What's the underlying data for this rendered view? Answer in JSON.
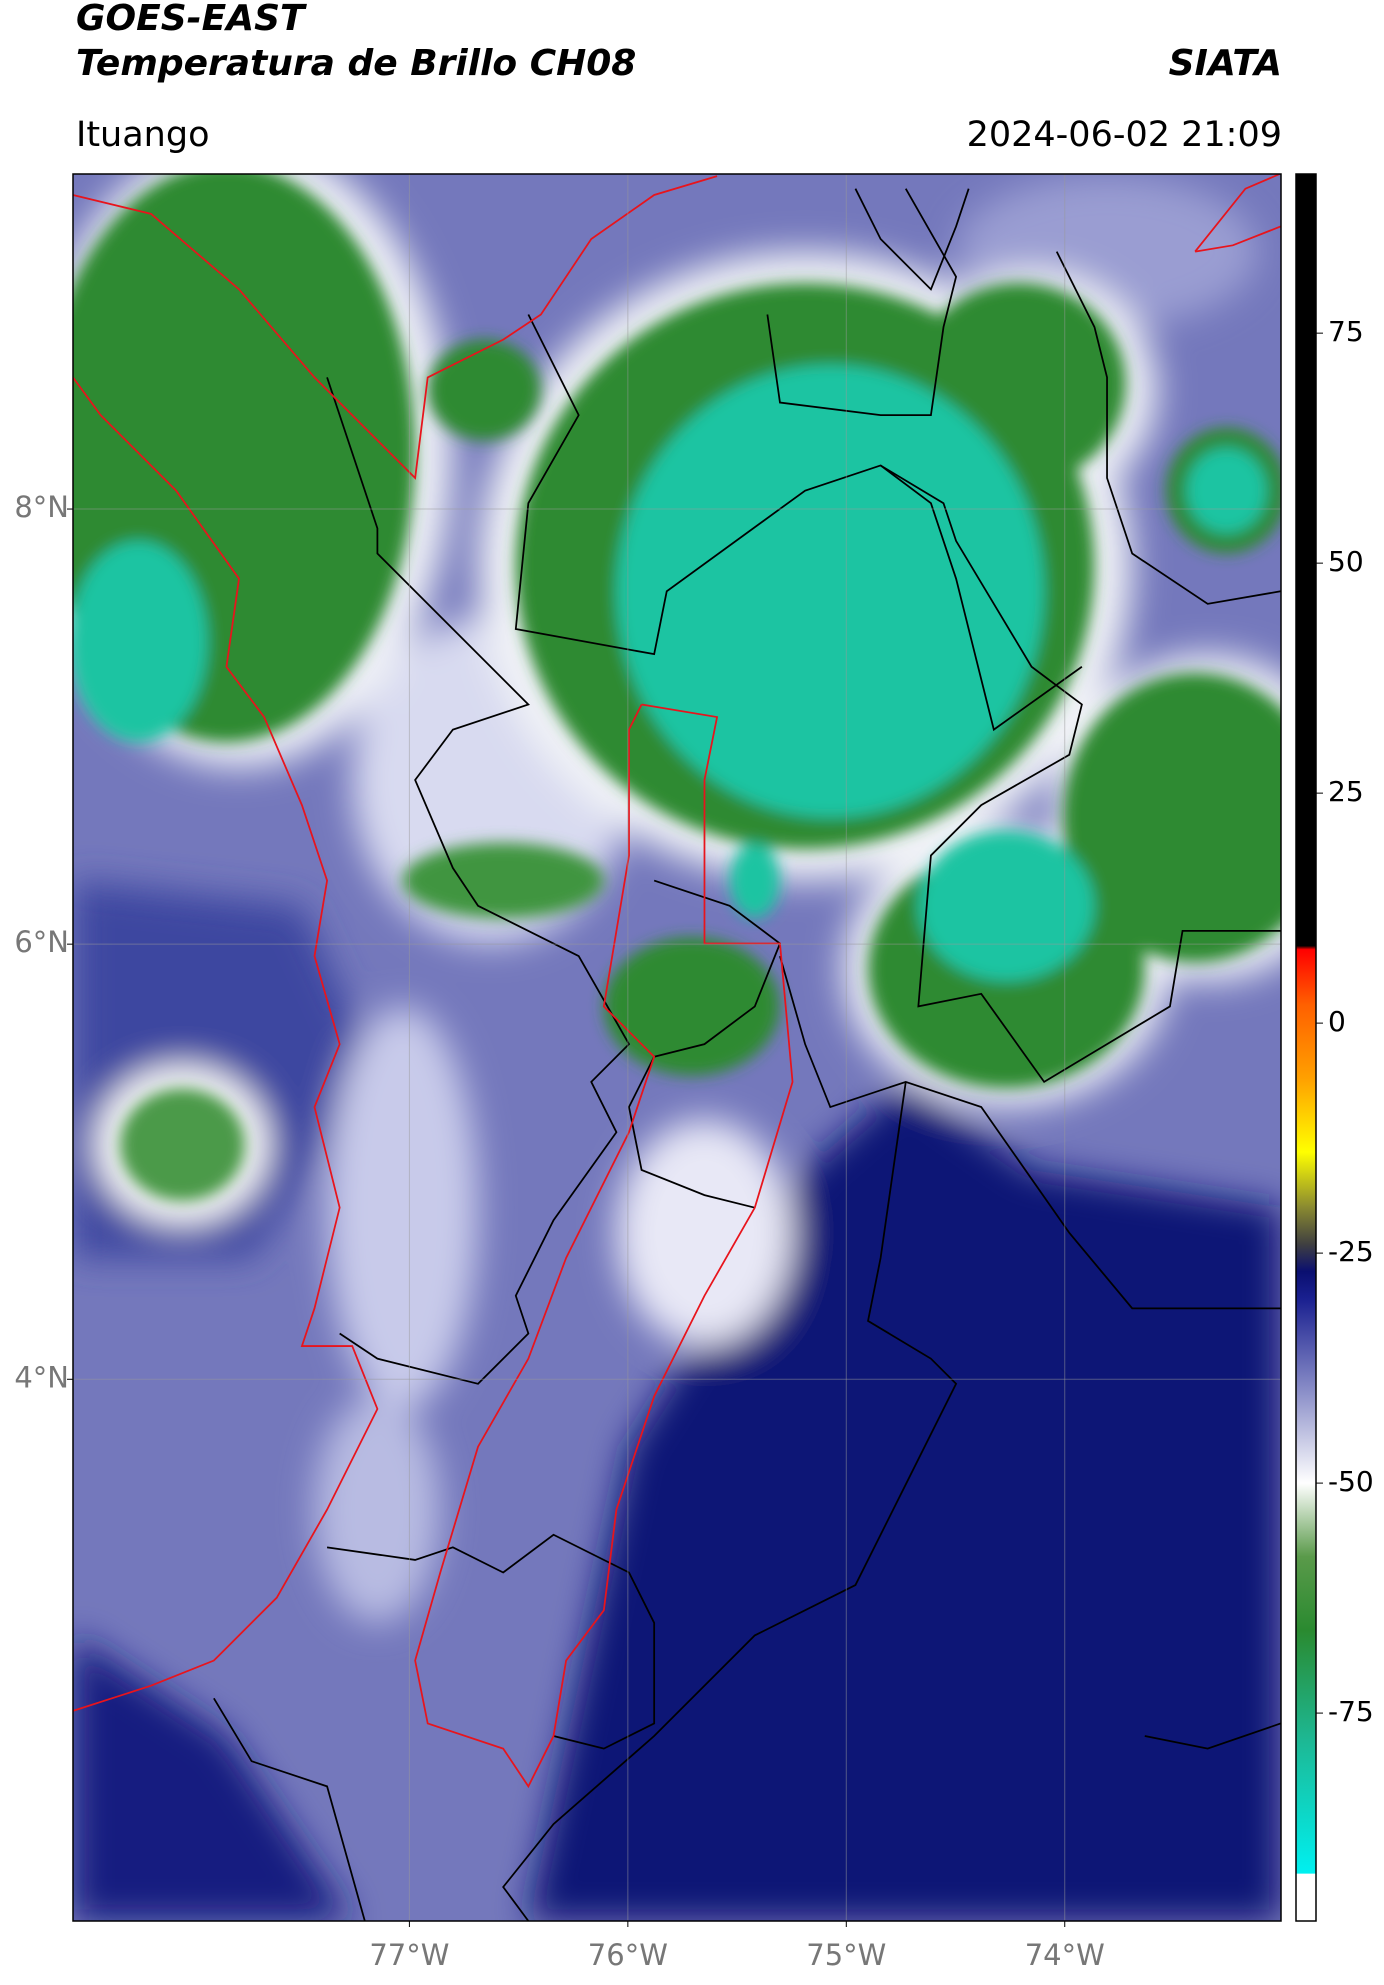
{
  "header": {
    "title": "GOES-EAST",
    "subtitle": "Temperatura de Brillo CH08",
    "source": "SIATA",
    "location": "Ituango",
    "datetime": "2024-06-02 21:09"
  },
  "map": {
    "xlim": [
      -78.54,
      -73.01
    ],
    "ylim": [
      1.51,
      9.54
    ],
    "xticks": [
      {
        "value": -77,
        "label": "77°W"
      },
      {
        "value": -76,
        "label": "76°W"
      },
      {
        "value": -75,
        "label": "75°W"
      },
      {
        "value": -74,
        "label": "74°W"
      }
    ],
    "yticks": [
      {
        "value": 8,
        "label": "8°N"
      },
      {
        "value": 6,
        "label": "6°N"
      },
      {
        "value": 4,
        "label": "4°N"
      }
    ],
    "grid": true
  },
  "colorbar": {
    "lim": [
      -97.6,
      92.3
    ],
    "ticks": [
      75,
      50,
      25,
      0,
      -25,
      -50,
      -75
    ],
    "stops": [
      [
        -97.6,
        "#ffffff"
      ],
      [
        -92.5,
        "#ffffff"
      ],
      [
        -92.4,
        "#00f0f0"
      ],
      [
        -78,
        "#1db894"
      ],
      [
        -66,
        "#2a8a30"
      ],
      [
        -58,
        "#5a9a4a"
      ],
      [
        -50,
        "#ffffff"
      ],
      [
        -40,
        "#8a8ec8"
      ],
      [
        -30,
        "#1a2090"
      ],
      [
        -27,
        "#0a0f70"
      ],
      [
        -24,
        "#404040"
      ],
      [
        -20,
        "#8a8a30"
      ],
      [
        -14,
        "#ffff00"
      ],
      [
        -6,
        "#ffa000"
      ],
      [
        2,
        "#ff6000"
      ],
      [
        8,
        "#ff0000"
      ],
      [
        8.4,
        "#000000"
      ],
      [
        92.3,
        "#000000"
      ]
    ]
  }
}
